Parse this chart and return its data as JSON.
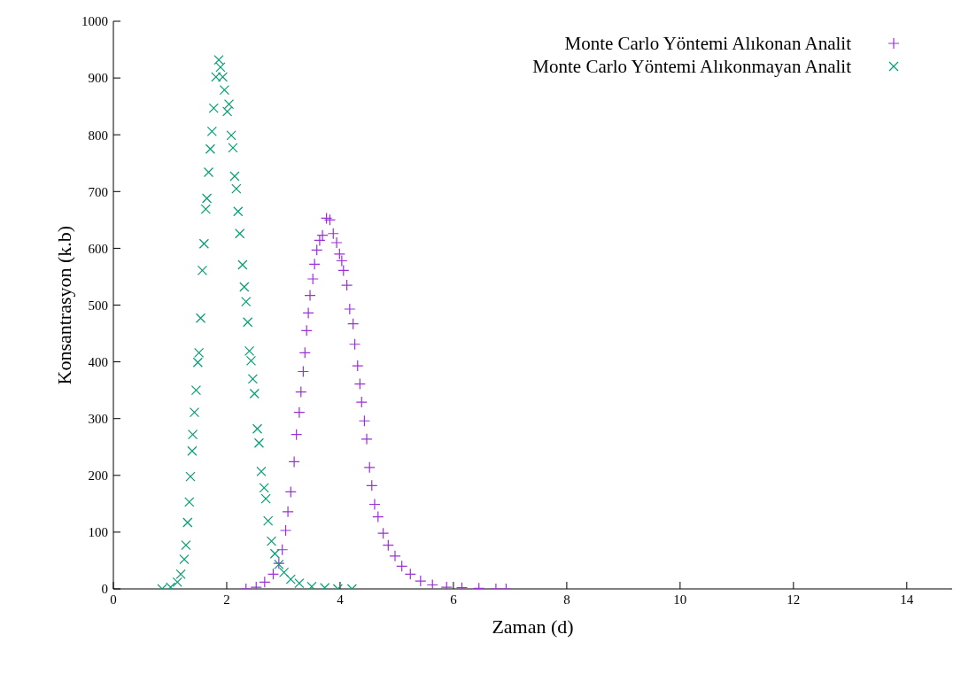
{
  "chart_data": {
    "type": "scatter",
    "xlabel": "Zaman (d)",
    "ylabel": "Konsantrasyon (k.b)",
    "xlim": [
      0,
      14.8
    ],
    "xticks": [
      0,
      2,
      4,
      6,
      8,
      10,
      12,
      14
    ],
    "ylim": [
      0,
      1000
    ],
    "yticks": [
      0,
      100,
      200,
      300,
      400,
      500,
      600,
      700,
      800,
      900,
      1000
    ],
    "grid": false,
    "legend": "top right",
    "series": [
      {
        "name": "Monte Carlo Yöntemi Alıkonan Analit",
        "color": "#9b30d9",
        "marker": "plus",
        "x": [
          2.34,
          2.52,
          2.67,
          2.82,
          2.92,
          2.98,
          3.04,
          3.08,
          3.13,
          3.19,
          3.23,
          3.28,
          3.31,
          3.35,
          3.38,
          3.41,
          3.44,
          3.47,
          3.52,
          3.55,
          3.59,
          3.64,
          3.69,
          3.76,
          3.82,
          3.88,
          3.94,
          3.99,
          4.03,
          4.06,
          4.12,
          4.17,
          4.23,
          4.26,
          4.31,
          4.35,
          4.38,
          4.43,
          4.47,
          4.52,
          4.56,
          4.61,
          4.67,
          4.76,
          4.85,
          4.97,
          5.09,
          5.24,
          5.42,
          5.63,
          5.88,
          6.15,
          6.45,
          6.75,
          6.93
        ],
        "values": [
          0,
          3,
          12,
          26,
          45,
          69,
          103,
          136,
          171,
          224,
          272,
          311,
          347,
          383,
          416,
          455,
          486,
          517,
          546,
          572,
          597,
          614,
          623,
          653,
          650,
          626,
          610,
          590,
          578,
          561,
          535,
          493,
          467,
          431,
          393,
          361,
          329,
          296,
          264,
          214,
          182,
          149,
          127,
          98,
          77,
          58,
          40,
          26,
          14,
          7,
          3,
          2,
          1,
          0,
          0
        ]
      },
      {
        "name": "Monte Carlo Yöntemi Alıkonmayan Analit",
        "color": "#009e73",
        "marker": "cross",
        "x": [
          0.86,
          1.01,
          1.13,
          1.19,
          1.25,
          1.28,
          1.31,
          1.34,
          1.36,
          1.39,
          1.4,
          1.43,
          1.46,
          1.49,
          1.51,
          1.54,
          1.57,
          1.6,
          1.63,
          1.65,
          1.68,
          1.71,
          1.74,
          1.77,
          1.81,
          1.86,
          1.89,
          1.93,
          1.96,
          2.01,
          2.04,
          2.08,
          2.11,
          2.14,
          2.17,
          2.2,
          2.23,
          2.28,
          2.31,
          2.34,
          2.37,
          2.4,
          2.43,
          2.46,
          2.49,
          2.54,
          2.57,
          2.61,
          2.66,
          2.69,
          2.73,
          2.79,
          2.85,
          2.92,
          3.01,
          3.13,
          3.28,
          3.5,
          3.73,
          3.96,
          4.21
        ],
        "values": [
          0,
          3,
          12,
          26,
          52,
          77,
          117,
          153,
          198,
          243,
          272,
          311,
          350,
          399,
          416,
          477,
          561,
          608,
          669,
          688,
          734,
          775,
          806,
          847,
          902,
          932,
          919,
          902,
          879,
          841,
          854,
          799,
          777,
          727,
          705,
          665,
          626,
          571,
          532,
          506,
          470,
          419,
          402,
          370,
          344,
          282,
          257,
          207,
          178,
          159,
          120,
          84,
          62,
          43,
          29,
          17,
          10,
          4,
          2,
          0,
          0
        ]
      }
    ]
  }
}
